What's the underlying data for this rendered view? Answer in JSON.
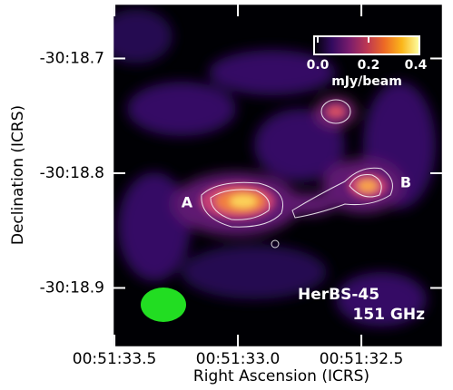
{
  "chart_data": {
    "type": "image",
    "title": "HerBS-45",
    "subtitle": "151 GHz",
    "x_label": "Right Ascension (ICRS)",
    "y_label": "Declination (ICRS)",
    "xlim": [
      3093.504,
      3092.173
    ],
    "ylim": [
      -1818.951,
      -1818.653
    ],
    "xticks": [
      {
        "value": 3093.5,
        "label": "00:51:33.5"
      },
      {
        "value": 3093.0,
        "label": "00:51:33.0"
      },
      {
        "value": 3092.5,
        "label": "00:51:32.5"
      }
    ],
    "yticks": [
      {
        "value": -1818.7,
        "label": "-30:18.7"
      },
      {
        "value": -1818.8,
        "label": "-30:18.8"
      },
      {
        "value": -1818.9,
        "label": "-30:18.9"
      }
    ],
    "colormap": "inferno",
    "colorbar": {
      "label": "mJy/beam",
      "clim": [
        0,
        0.4
      ],
      "ticks": [
        {
          "value": 0,
          "label": "0.0"
        },
        {
          "value": 0.2,
          "label": "0.2"
        },
        {
          "value": 0.4,
          "label": "0.4"
        }
      ]
    },
    "annotations": [
      "A",
      "B"
    ],
    "beam_color": "#22dd22"
  }
}
